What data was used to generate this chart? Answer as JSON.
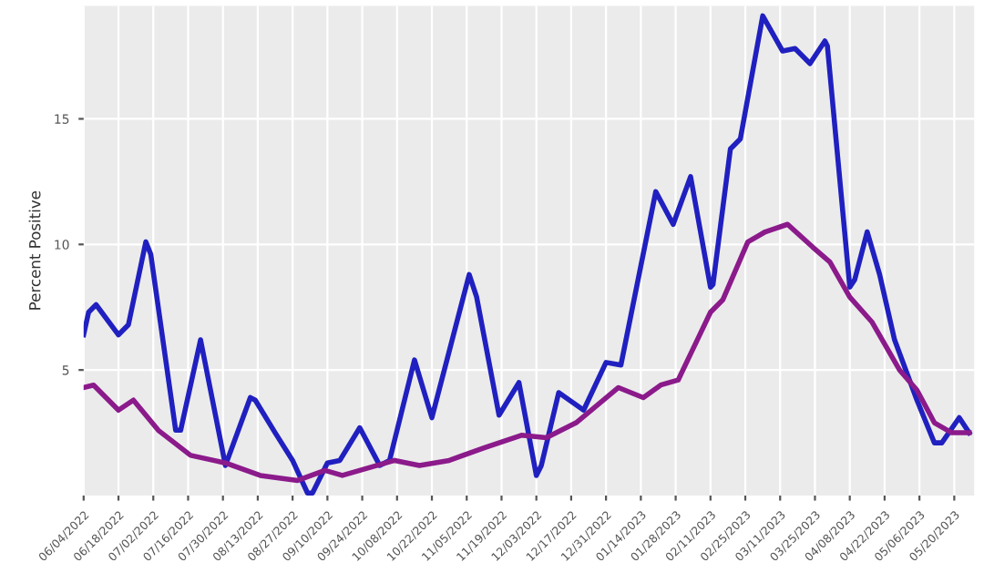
{
  "chart_data": {
    "type": "line",
    "ylabel": "Percent Positive",
    "ylim": [
      0,
      19.5
    ],
    "yticks": [
      5,
      10,
      15
    ],
    "xlim": [
      "2022-06-04",
      "2023-05-28"
    ],
    "xticks": [
      {
        "value": "2022-06-04",
        "label": "06/04/2022"
      },
      {
        "value": "2022-06-18",
        "label": "06/18/2022"
      },
      {
        "value": "2022-07-02",
        "label": "07/02/2022"
      },
      {
        "value": "2022-07-16",
        "label": "07/16/2022"
      },
      {
        "value": "2022-07-30",
        "label": "07/30/2022"
      },
      {
        "value": "2022-08-13",
        "label": "08/13/2022"
      },
      {
        "value": "2022-08-27",
        "label": "08/27/2022"
      },
      {
        "value": "2022-09-10",
        "label": "09/10/2022"
      },
      {
        "value": "2022-09-24",
        "label": "09/24/2022"
      },
      {
        "value": "2022-10-08",
        "label": "10/08/2022"
      },
      {
        "value": "2022-10-22",
        "label": "10/22/2022"
      },
      {
        "value": "2022-11-05",
        "label": "11/05/2022"
      },
      {
        "value": "2022-11-19",
        "label": "11/19/2022"
      },
      {
        "value": "2022-12-03",
        "label": "12/03/2022"
      },
      {
        "value": "2022-12-17",
        "label": "12/17/2022"
      },
      {
        "value": "2022-12-31",
        "label": "12/31/2022"
      },
      {
        "value": "2023-01-14",
        "label": "01/14/2023"
      },
      {
        "value": "2023-01-28",
        "label": "01/28/2023"
      },
      {
        "value": "2023-02-11",
        "label": "02/11/2023"
      },
      {
        "value": "2023-02-25",
        "label": "02/25/2023"
      },
      {
        "value": "2023-03-11",
        "label": "03/11/2023"
      },
      {
        "value": "2023-03-25",
        "label": "03/25/2023"
      },
      {
        "value": "2023-04-08",
        "label": "04/08/2023"
      },
      {
        "value": "2023-04-22",
        "label": "04/22/2023"
      },
      {
        "value": "2023-05-06",
        "label": "05/06/2023"
      },
      {
        "value": "2023-05-20",
        "label": "05/20/2023"
      }
    ],
    "grid": true,
    "marker": "none",
    "line_style": "solid",
    "series": [
      {
        "color": "#2020c0",
        "x": [
          "2022-06-04",
          "2022-06-06",
          "2022-06-09",
          "2022-06-18",
          "2022-06-22",
          "2022-06-29",
          "2022-07-01",
          "2022-07-11",
          "2022-07-13",
          "2022-07-21",
          "2022-07-31",
          "2022-08-10",
          "2022-08-12",
          "2022-08-20",
          "2022-08-27",
          "2022-09-02",
          "2022-09-04",
          "2022-09-10",
          "2022-09-15",
          "2022-09-23",
          "2022-10-01",
          "2022-10-05",
          "2022-10-15",
          "2022-10-22",
          "2022-11-06",
          "2022-11-09",
          "2022-11-18",
          "2022-11-26",
          "2022-12-03",
          "2022-12-05",
          "2022-12-12",
          "2022-12-22",
          "2022-12-31",
          "2023-01-06",
          "2023-01-20",
          "2023-01-27",
          "2023-02-03",
          "2023-02-11",
          "2023-02-12",
          "2023-02-19",
          "2023-02-23",
          "2023-03-04",
          "2023-03-12",
          "2023-03-17",
          "2023-03-23",
          "2023-03-29",
          "2023-03-30",
          "2023-04-08",
          "2023-04-10",
          "2023-04-15",
          "2023-04-20",
          "2023-04-26",
          "2023-05-05",
          "2023-05-12",
          "2023-05-15",
          "2023-05-22",
          "2023-05-26"
        ],
        "values": [
          6.4,
          7.3,
          7.6,
          6.4,
          6.8,
          10.1,
          9.6,
          2.6,
          2.6,
          6.2,
          1.2,
          3.9,
          3.8,
          2.5,
          1.4,
          0.1,
          0.1,
          1.3,
          1.4,
          2.7,
          1.2,
          1.4,
          5.4,
          3.1,
          8.8,
          7.9,
          3.2,
          4.5,
          0.8,
          1.2,
          4.1,
          3.4,
          5.3,
          5.2,
          12.1,
          10.8,
          12.7,
          8.3,
          8.4,
          13.8,
          14.2,
          19.1,
          17.7,
          17.8,
          17.2,
          18.1,
          17.9,
          8.3,
          8.6,
          10.5,
          8.8,
          6.2,
          3.8,
          2.1,
          2.1,
          3.1,
          2.5
        ]
      },
      {
        "color": "#8b1a8b",
        "x": [
          "2022-06-04",
          "2022-06-08",
          "2022-06-18",
          "2022-06-24",
          "2022-07-04",
          "2022-07-17",
          "2022-07-31",
          "2022-08-14",
          "2022-08-29",
          "2022-09-09",
          "2022-09-16",
          "2022-09-23",
          "2022-10-07",
          "2022-10-17",
          "2022-10-29",
          "2022-11-12",
          "2022-11-27",
          "2022-12-07",
          "2022-12-19",
          "2023-01-05",
          "2023-01-15",
          "2023-01-22",
          "2023-01-29",
          "2023-02-11",
          "2023-02-16",
          "2023-02-26",
          "2023-03-05",
          "2023-03-14",
          "2023-03-24",
          "2023-03-31",
          "2023-04-08",
          "2023-04-17",
          "2023-04-28",
          "2023-05-05",
          "2023-05-12",
          "2023-05-19",
          "2023-05-26"
        ],
        "values": [
          4.3,
          4.4,
          3.4,
          3.8,
          2.6,
          1.6,
          1.3,
          0.8,
          0.6,
          1.0,
          0.8,
          1.0,
          1.4,
          1.2,
          1.4,
          1.9,
          2.4,
          2.3,
          2.9,
          4.3,
          3.9,
          4.4,
          4.6,
          7.3,
          7.8,
          10.1,
          10.5,
          10.8,
          9.9,
          9.3,
          7.9,
          6.9,
          5.0,
          4.2,
          2.9,
          2.5,
          2.5
        ]
      }
    ]
  }
}
